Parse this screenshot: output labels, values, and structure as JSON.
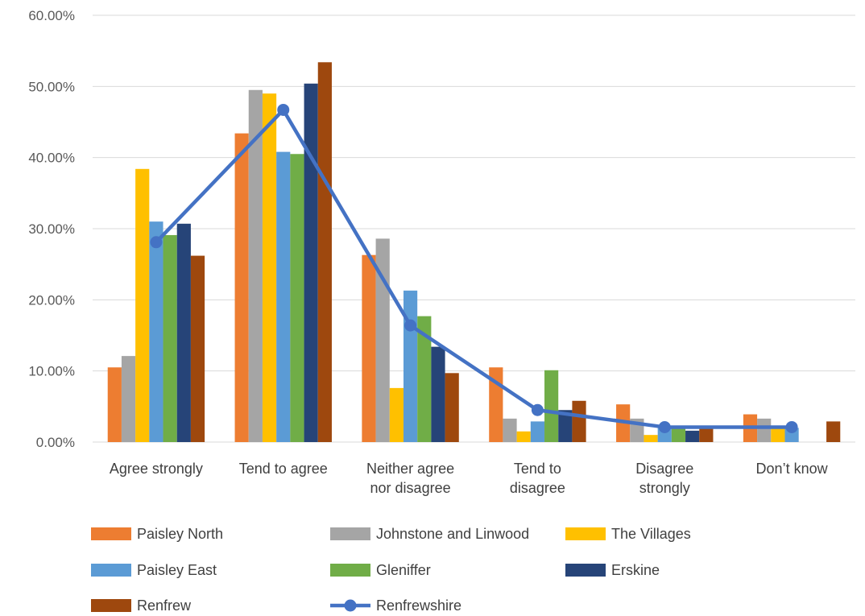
{
  "chart_data": {
    "type": "bar",
    "title": "",
    "xlabel": "",
    "ylabel": "",
    "ylim": [
      0,
      60
    ],
    "y_ticks": [
      0,
      10,
      20,
      30,
      40,
      50,
      60
    ],
    "y_tick_labels": [
      "0.00%",
      "10.00%",
      "20.00%",
      "30.00%",
      "40.00%",
      "50.00%",
      "60.00%"
    ],
    "grid": true,
    "legend_position": "bottom",
    "categories": [
      [
        "Agree strongly"
      ],
      [
        "Tend to agree"
      ],
      [
        "Neither agree",
        "nor disagree"
      ],
      [
        "Tend to",
        "disagree"
      ],
      [
        "Disagree",
        "strongly"
      ],
      [
        "Don’t know"
      ]
    ],
    "series": [
      {
        "name": "Paisley North",
        "kind": "bar",
        "color": "#ED7D31",
        "values": [
          10.5,
          43.4,
          26.3,
          10.5,
          5.3,
          3.9
        ]
      },
      {
        "name": "Johnstone and Linwood",
        "kind": "bar",
        "color": "#A5A5A5",
        "values": [
          12.1,
          49.5,
          28.6,
          3.3,
          3.3,
          3.3
        ]
      },
      {
        "name": "The Villages",
        "kind": "bar",
        "color": "#FFC000",
        "values": [
          38.4,
          49.0,
          7.6,
          1.5,
          1.0,
          2.0
        ]
      },
      {
        "name": "Paisley East",
        "kind": "bar",
        "color": "#5B9BD5",
        "values": [
          31.0,
          40.8,
          21.3,
          2.9,
          2.0,
          2.0
        ]
      },
      {
        "name": "Gleniffer",
        "kind": "bar",
        "color": "#70AD47",
        "values": [
          29.1,
          40.5,
          17.7,
          10.1,
          1.9,
          0.0
        ]
      },
      {
        "name": "Erskine",
        "kind": "bar",
        "color": "#264478",
        "values": [
          30.7,
          50.4,
          13.4,
          4.5,
          1.6,
          0.0
        ]
      },
      {
        "name": "Renfrew",
        "kind": "bar",
        "color": "#9E480E",
        "values": [
          26.2,
          53.4,
          9.7,
          5.8,
          1.9,
          2.9
        ]
      },
      {
        "name": "Renfrewshire",
        "kind": "line",
        "color": "#4472C4",
        "values": [
          28.1,
          46.7,
          16.4,
          4.5,
          2.1,
          2.1
        ]
      }
    ]
  }
}
